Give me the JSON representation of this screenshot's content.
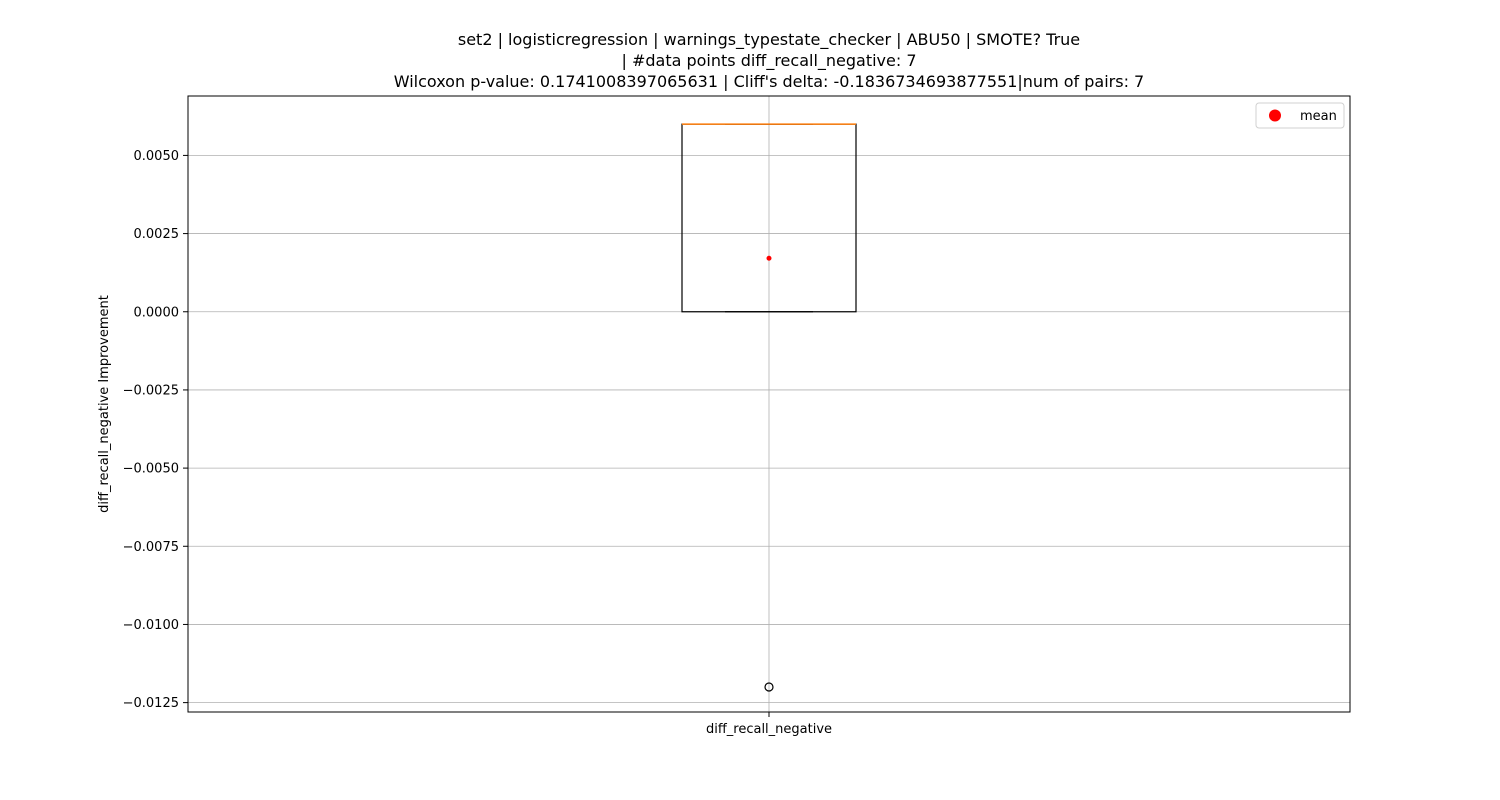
{
  "title": {
    "line1": "set2 | logisticregression | warnings_typestate_checker | ABU50 | SMOTE? True",
    "line2": "| #data points diff_recall_negative: 7",
    "line3": "Wilcoxon p-value: 0.1741008397065631 | Cliff's delta: -0.1836734693877551|num of pairs: 7"
  },
  "chart_data": {
    "type": "box",
    "title": "set2 | logisticregression | warnings_typestate_checker | ABU50 | SMOTE? True | #data points diff_recall_negative: 7 Wilcoxon p-value: 0.1741008397065631 | Cliff's delta: -0.1836734693877551|num of pairs: 7",
    "xlabel": "",
    "ylabel": "diff_recall_negative Improvement",
    "categories": [
      "diff_recall_negative"
    ],
    "boxes": [
      {
        "label": "diff_recall_negative",
        "q1": 0.0,
        "median": 0.006,
        "q3": 0.006,
        "whisker_low": 0.0,
        "whisker_high": 0.006,
        "mean": 0.00171,
        "outliers": [
          -0.012
        ]
      }
    ],
    "ylim": [
      -0.0128,
      0.0069
    ],
    "yticks": [
      -0.0125,
      -0.01,
      -0.0075,
      -0.005,
      -0.0025,
      0.0,
      0.0025,
      0.005
    ],
    "ytick_labels": [
      "−0.0125",
      "−0.0100",
      "−0.0075",
      "−0.0050",
      "−0.0025",
      "0.0000",
      "0.0025",
      "0.0050"
    ],
    "grid": true,
    "legend": {
      "placement": "upper right",
      "entries": [
        {
          "label": "mean",
          "color": "#ff0000",
          "marker": "circle"
        }
      ]
    },
    "colors": {
      "box": "#000000",
      "median": "#ff7f0e",
      "mean": "#ff0000",
      "grid": "#b0b0b0"
    }
  }
}
